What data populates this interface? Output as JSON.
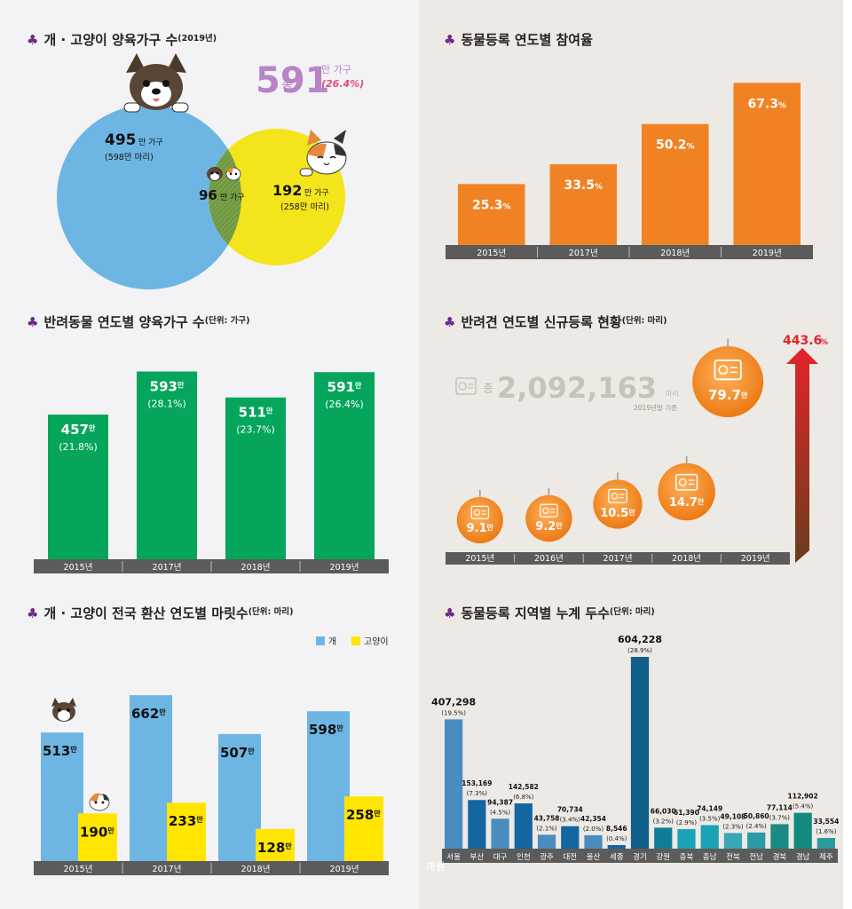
{
  "venn": {
    "title": "개 · 고양이 양육가구 수",
    "title_sub": "(2019년)",
    "total_prefix": "총",
    "total_value": "591",
    "total_unit": "만 가구",
    "total_pct": "(26.4%)",
    "dog_value": "495",
    "dog_unit": "만 가구",
    "dog_sub": "(598만 마리)",
    "both_value": "96",
    "both_unit": "만 가구",
    "cat_value": "192",
    "cat_unit": "만 가구",
    "cat_sub": "(258만 마리)",
    "colors": {
      "dog": "#6db6e3",
      "cat": "#f4e41c",
      "overlap": "#7aa04a",
      "total": "#b784c5"
    }
  },
  "participation": {
    "title": "동물등록 연도별 참여율",
    "chart_data": {
      "type": "bar",
      "categories": [
        "2015년",
        "2017년",
        "2018년",
        "2019년"
      ],
      "values": [
        25.3,
        33.5,
        50.2,
        67.3
      ],
      "labels": [
        "25.3",
        "33.5",
        "50.2",
        "67.3"
      ],
      "unit": "%",
      "color": "#f08224"
    }
  },
  "households": {
    "title": "반려동물 연도별 양육가구 수",
    "title_sub": "(단위: 가구)",
    "chart_data": {
      "type": "bar",
      "categories": [
        "2015년",
        "2017년",
        "2018년",
        "2019년"
      ],
      "values": [
        457,
        593,
        511,
        591
      ],
      "labels": [
        "457",
        "593",
        "511",
        "591"
      ],
      "unit": "만",
      "percents": [
        "(21.8%)",
        "(28.1%)",
        "(23.7%)",
        "(26.4%)"
      ],
      "color": "#05a65c"
    }
  },
  "newreg": {
    "title": "반려견 연도별 신규등록 현황",
    "title_sub": "(단위: 마리)",
    "total_prefix": "총",
    "total_value": "2,092,163",
    "total_unit": "마리",
    "total_note": "2019년말 기준",
    "growth": "443.6",
    "growth_unit": "%",
    "chart_data": {
      "type": "bubble",
      "categories": [
        "2015년",
        "2016년",
        "2017년",
        "2018년",
        "2019년"
      ],
      "values": [
        9.1,
        9.2,
        10.5,
        14.7,
        79.7
      ],
      "labels": [
        "9.1",
        "9.2",
        "10.5",
        "14.7",
        "79.7"
      ],
      "unit": "만",
      "color": "#f08224"
    }
  },
  "pets": {
    "title": "개 · 고양이 전국 환산 연도별 마릿수",
    "title_sub": "(단위: 마리)",
    "legend_dog": "개",
    "legend_cat": "고양이",
    "chart_data": {
      "type": "bar",
      "categories": [
        "2015년",
        "2017년",
        "2018년",
        "2019년"
      ],
      "series": [
        {
          "name": "개",
          "values": [
            513,
            662,
            507,
            598
          ],
          "labels": [
            "513",
            "662",
            "507",
            "598"
          ],
          "color": "#6db6e3"
        },
        {
          "name": "고양이",
          "values": [
            190,
            233,
            128,
            258
          ],
          "labels": [
            "190",
            "233",
            "128",
            "258"
          ],
          "color": "#ffe500"
        }
      ],
      "unit": "만"
    }
  },
  "regions": {
    "title": "동물등록 지역별 누계 두수",
    "title_sub": "(단위: 마리)",
    "chart_data": {
      "type": "bar",
      "categories": [
        "서울",
        "부산",
        "대구",
        "인천",
        "광주",
        "대전",
        "울산",
        "세종",
        "경기",
        "강원",
        "충북",
        "충남",
        "전북",
        "전남",
        "경북",
        "경남",
        "제주"
      ],
      "values": [
        407298,
        153169,
        94387,
        142582,
        43758,
        70734,
        42354,
        8546,
        604228,
        66030,
        61390,
        74149,
        49108,
        50860,
        77114,
        112902,
        33554
      ],
      "labels": [
        "407,298",
        "153,169",
        "94,387",
        "142,582",
        "43,758",
        "70,734",
        "42,354",
        "8,546",
        "604,228",
        "66,030",
        "61,390",
        "74,149",
        "49,108",
        "50,860",
        "77,114",
        "112,902",
        "33,554"
      ],
      "percents": [
        "(19.5%)",
        "(7.3%)",
        "(4.5%)",
        "(6.8%)",
        "(2.1%)",
        "(3.4%)",
        "(2.0%)",
        "(0.4%)",
        "(28.9%)",
        "(3.2%)",
        "(2.9%)",
        "(3.5%)",
        "(2.3%)",
        "(2.4%)",
        "(3.7%)",
        "(5.4%)",
        "(1.6%)"
      ],
      "colors": [
        "#4a8cc0",
        "#1565a1",
        "#4a8cc0",
        "#1565a1",
        "#4a8cc0",
        "#1565a1",
        "#4a8cc0",
        "#1565a1",
        "#0f5f88",
        "#0e7e96",
        "#1aa3b7",
        "#1aa3b7",
        "#38a7b7",
        "#2a9ba5",
        "#1b8b84",
        "#128a7d",
        "#2a9b9a"
      ]
    }
  },
  "watermark": "개원"
}
